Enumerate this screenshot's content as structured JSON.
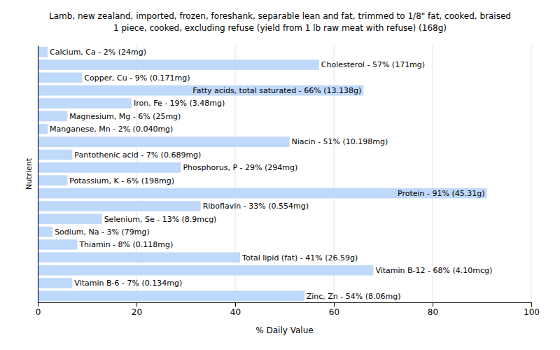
{
  "chart_data": {
    "type": "bar",
    "orientation": "horizontal",
    "title": "Lamb, new zealand, imported, frozen, foreshank, separable lean and fat, trimmed to 1/8\" fat, cooked, braised",
    "subtitle": "1 piece, cooked, excluding refuse (yield from 1 lb raw meat with refuse) (168g)",
    "x_label": "% Daily Value",
    "y_label": "Nutrient",
    "categories": [
      "Calcium, Ca - 2% (24mg)",
      "Cholesterol - 57% (171mg)",
      "Copper, Cu - 9% (0.171mg)",
      "Fatty acids, total saturated - 66% (13.138g)",
      "Iron, Fe - 19% (3.48mg)",
      "Magnesium, Mg - 6% (25mg)",
      "Manganese, Mn - 2% (0.040mg)",
      "Niacin - 51% (10.198mg)",
      "Pantothenic acid - 7% (0.689mg)",
      "Phosphorus, P - 29% (294mg)",
      "Potassium, K - 6% (198mg)",
      "Protein - 91% (45.31g)",
      "Riboflavin - 33% (0.554mg)",
      "Selenium, Se - 13% (8.9mcg)",
      "Sodium, Na - 3% (79mg)",
      "Thiamin - 8% (0.118mg)",
      "Total lipid (fat) - 41% (26.59g)",
      "Vitamin B-12 - 68% (4.10mcg)",
      "Vitamin B-6 - 7% (0.134mg)",
      "Zinc, Zn - 54% (8.06mg)"
    ],
    "values": [
      2,
      57,
      9,
      66,
      19,
      6,
      2,
      51,
      7,
      29,
      6,
      91,
      33,
      13,
      3,
      8,
      41,
      68,
      7,
      54
    ],
    "color": "#bfd9fb",
    "xlim": [
      0,
      100
    ],
    "xticks": [
      0,
      20,
      40,
      60,
      80,
      100
    ],
    "grid": true,
    "tick_labels": "x"
  }
}
